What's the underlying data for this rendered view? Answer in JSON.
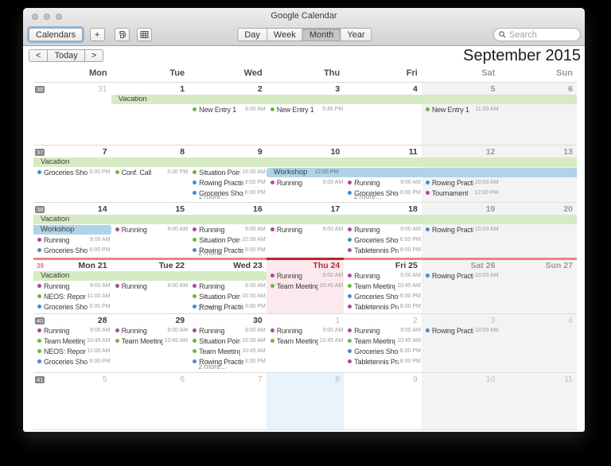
{
  "window": {
    "title": "Google Calendar"
  },
  "toolbar": {
    "calendars_label": "Calendars",
    "add_label": "+",
    "print_icon": "printer-icon",
    "grid_icon": "month-grid-icon",
    "view_segments": [
      {
        "label": "Day",
        "active": false
      },
      {
        "label": "Week",
        "active": false
      },
      {
        "label": "Month",
        "active": true
      },
      {
        "label": "Year",
        "active": false
      }
    ],
    "search_placeholder": "Search"
  },
  "nav": {
    "prev": "<",
    "today_label": "Today",
    "next": ">",
    "period": "September 2015"
  },
  "day_headers": [
    "Mon",
    "Tue",
    "Wed",
    "Thu",
    "Fri",
    "Sat",
    "Sun"
  ],
  "colors": {
    "banner_green": "#d6ebc3",
    "banner_blue": "#afd3e8",
    "dot_green": "#6fb53f",
    "dot_blue": "#4a8bc9",
    "dot_purple": "#a74b9f",
    "today_red": "#c8232c",
    "current_week_bar": "#ef837e",
    "current_week_bar_today": "#b2282e",
    "today_column_bg": "#fbe9ed",
    "selected_column_bg": "#e9f3fb",
    "weekend_bg": "#f3f3f3"
  },
  "weeks": [
    {
      "num": "36",
      "h": 78,
      "current": false,
      "banners": [
        {
          "title": "Vacation",
          "time": "",
          "color": "green",
          "start": 2,
          "span": 6,
          "lane": 0,
          "round_left": true,
          "round_right": false
        }
      ],
      "cells": [
        {
          "num": "31",
          "out": true,
          "skip": 0,
          "events": [],
          "more": ""
        },
        {
          "num": "1",
          "out": false,
          "skip": 1,
          "events": [],
          "more": ""
        },
        {
          "num": "2",
          "out": false,
          "skip": 1,
          "events": [
            {
              "t": "New Entry 1",
              "tm": "9:00 AM",
              "c": "green"
            }
          ],
          "more": ""
        },
        {
          "num": "3",
          "out": false,
          "skip": 1,
          "events": [
            {
              "t": "New Entry 1",
              "tm": "5:45 PM",
              "c": "green"
            }
          ],
          "more": ""
        },
        {
          "num": "4",
          "out": false,
          "skip": 1,
          "events": [],
          "more": ""
        },
        {
          "num": "5",
          "out": false,
          "skip": 1,
          "events": [
            {
              "t": "New Entry 1",
              "tm": "11:30 AM",
              "c": "green"
            }
          ],
          "more": ""
        },
        {
          "num": "6",
          "out": false,
          "skip": 1,
          "events": [],
          "more": ""
        }
      ]
    },
    {
      "num": "37",
      "h": 71,
      "current": false,
      "banners": [
        {
          "title": "Vacation",
          "time": "",
          "color": "green",
          "start": 1,
          "span": 7,
          "lane": 0,
          "round_left": false,
          "round_right": false
        },
        {
          "title": "Workshop",
          "time": "12:00 PM",
          "color": "blue",
          "start": 4,
          "span": 4,
          "lane": 1,
          "round_left": true,
          "round_right": false
        }
      ],
      "cells": [
        {
          "num": "7",
          "out": false,
          "skip": 1,
          "events": [
            {
              "t": "Groceries Shopping",
              "tm": "6:00 PM",
              "c": "blue"
            }
          ],
          "more": ""
        },
        {
          "num": "8",
          "out": false,
          "skip": 1,
          "events": [
            {
              "t": "Conf. Call",
              "tm": "3:30 PM",
              "c": "green"
            }
          ],
          "more": ""
        },
        {
          "num": "9",
          "out": false,
          "skip": 1,
          "events": [
            {
              "t": "Situation Point N...",
              "tm": "10:30 AM",
              "c": "green"
            },
            {
              "t": "Rowing Practise",
              "tm": "3:00 PM",
              "c": "blue"
            },
            {
              "t": "Groceries Shopping",
              "tm": "6:00 PM",
              "c": "blue"
            }
          ],
          "more": "1 more..."
        },
        {
          "num": "10",
          "out": false,
          "skip": 2,
          "events": [
            {
              "t": "Running",
              "tm": "9:00 AM",
              "c": "purple"
            }
          ],
          "more": ""
        },
        {
          "num": "11",
          "out": false,
          "skip": 2,
          "events": [
            {
              "t": "Running",
              "tm": "9:00 AM",
              "c": "purple"
            },
            {
              "t": "Groceries Shopping",
              "tm": "6:00 PM",
              "c": "blue"
            }
          ],
          "more": "1 more..."
        },
        {
          "num": "12",
          "out": false,
          "skip": 2,
          "events": [
            {
              "t": "Rowing Practise",
              "tm": "10:00 AM",
              "c": "blue"
            },
            {
              "t": "Tournament",
              "tm": "12:00 PM",
              "c": "purple"
            }
          ],
          "more": ""
        },
        {
          "num": "13",
          "out": false,
          "skip": 2,
          "events": [],
          "more": ""
        }
      ]
    },
    {
      "num": "38",
      "h": 70,
      "current": false,
      "banners": [
        {
          "title": "Vacation",
          "time": "",
          "color": "green",
          "start": 1,
          "span": 7,
          "lane": 0,
          "round_left": false,
          "round_right": false
        },
        {
          "title": "Workshop",
          "time": "",
          "color": "blue",
          "start": 1,
          "span": 1,
          "lane": 1,
          "round_left": false,
          "round_right": true
        }
      ],
      "cells": [
        {
          "num": "14",
          "out": false,
          "skip": 2,
          "events": [
            {
              "t": "Running",
              "tm": "9:00 AM",
              "c": "purple"
            },
            {
              "t": "Groceries Shopping",
              "tm": "6:00 PM",
              "c": "blue"
            }
          ],
          "more": ""
        },
        {
          "num": "15",
          "out": false,
          "skip": 1,
          "events": [
            {
              "t": "Running",
              "tm": "9:00 AM",
              "c": "purple"
            }
          ],
          "more": ""
        },
        {
          "num": "16",
          "out": false,
          "skip": 1,
          "events": [
            {
              "t": "Running",
              "tm": "9:00 AM",
              "c": "purple"
            },
            {
              "t": "Situation Point N...",
              "tm": "10:30 AM",
              "c": "green"
            },
            {
              "t": "Rowing Practise",
              "tm": "3:00 PM",
              "c": "blue"
            }
          ],
          "more": "2 more..."
        },
        {
          "num": "17",
          "out": false,
          "skip": 1,
          "events": [
            {
              "t": "Running",
              "tm": "9:00 AM",
              "c": "purple"
            }
          ],
          "more": ""
        },
        {
          "num": "18",
          "out": false,
          "skip": 1,
          "events": [
            {
              "t": "Running",
              "tm": "9:00 AM",
              "c": "purple"
            },
            {
              "t": "Groceries Shopping",
              "tm": "6:00 PM",
              "c": "blue"
            },
            {
              "t": "Tabletennis Practi...",
              "tm": "8:00 PM",
              "c": "purple"
            }
          ],
          "more": ""
        },
        {
          "num": "19",
          "out": false,
          "skip": 1,
          "events": [
            {
              "t": "Rowing Practise",
              "tm": "10:00 AM",
              "c": "blue"
            }
          ],
          "more": ""
        },
        {
          "num": "20",
          "out": false,
          "skip": 1,
          "events": [],
          "more": ""
        }
      ]
    },
    {
      "num": "39",
      "h": 68,
      "current": true,
      "banners": [
        {
          "title": "Vacation",
          "time": "",
          "color": "green",
          "start": 1,
          "span": 3,
          "lane": 0,
          "round_left": false,
          "round_right": true
        }
      ],
      "cells": [
        {
          "num": "21",
          "label": "Mon 21",
          "out": false,
          "skip": 1,
          "events": [
            {
              "t": "Running",
              "tm": "9:00 AM",
              "c": "purple"
            },
            {
              "t": "NEOS: Report Ti...",
              "tm": "11:00 AM",
              "c": "green"
            },
            {
              "t": "Groceries Shopping",
              "tm": "6:00 PM",
              "c": "blue"
            }
          ],
          "more": ""
        },
        {
          "num": "22",
          "label": "Tue 22",
          "out": false,
          "skip": 1,
          "events": [
            {
              "t": "Running",
              "tm": "9:00 AM",
              "c": "purple"
            }
          ],
          "more": ""
        },
        {
          "num": "23",
          "label": "Wed 23",
          "out": false,
          "skip": 1,
          "events": [
            {
              "t": "Running",
              "tm": "9:00 AM",
              "c": "purple"
            },
            {
              "t": "Situation Point N...",
              "tm": "10:30 AM",
              "c": "green"
            },
            {
              "t": "Rowing Practise",
              "tm": "3:00 PM",
              "c": "blue"
            }
          ],
          "more": "2 more..."
        },
        {
          "num": "24",
          "label": "Thu 24",
          "out": false,
          "today": true,
          "hl": "pink",
          "skip": 0,
          "events": [
            {
              "t": "Running",
              "tm": "9:00 AM",
              "c": "purple"
            },
            {
              "t": "Team Meeting",
              "tm": "10:45 AM",
              "c": "green"
            }
          ],
          "more": ""
        },
        {
          "num": "25",
          "label": "Fri 25",
          "out": false,
          "skip": 0,
          "events": [
            {
              "t": "Running",
              "tm": "9:00 AM",
              "c": "purple"
            },
            {
              "t": "Team Meeting",
              "tm": "10:45 AM",
              "c": "green"
            },
            {
              "t": "Groceries Shopping",
              "tm": "6:00 PM",
              "c": "blue"
            },
            {
              "t": "Tabletennis Practi...",
              "tm": "8:00 PM",
              "c": "purple"
            }
          ],
          "more": ""
        },
        {
          "num": "26",
          "label": "Sat 26",
          "out": false,
          "skip": 0,
          "events": [
            {
              "t": "Rowing Practise",
              "tm": "10:00 AM",
              "c": "blue"
            }
          ],
          "more": ""
        },
        {
          "num": "27",
          "label": "Sun 27",
          "out": false,
          "skip": 0,
          "events": [],
          "more": ""
        }
      ]
    },
    {
      "num": "40",
      "h": 73,
      "current": false,
      "banners": [],
      "cells": [
        {
          "num": "28",
          "out": false,
          "skip": 0,
          "events": [
            {
              "t": "Running",
              "tm": "9:00 AM",
              "c": "purple"
            },
            {
              "t": "Team Meeting",
              "tm": "10:45 AM",
              "c": "green"
            },
            {
              "t": "NEOS: Report Ti...",
              "tm": "11:00 AM",
              "c": "green"
            },
            {
              "t": "Groceries Shopping",
              "tm": "6:00 PM",
              "c": "blue"
            }
          ],
          "more": ""
        },
        {
          "num": "29",
          "out": false,
          "skip": 0,
          "events": [
            {
              "t": "Running",
              "tm": "9:00 AM",
              "c": "purple"
            },
            {
              "t": "Team Meeting",
              "tm": "10:45 AM",
              "c": "green"
            }
          ],
          "more": ""
        },
        {
          "num": "30",
          "out": false,
          "skip": 0,
          "events": [
            {
              "t": "Running",
              "tm": "9:00 AM",
              "c": "purple"
            },
            {
              "t": "Situation Point N...",
              "tm": "10:30 AM",
              "c": "green"
            },
            {
              "t": "Team Meeting",
              "tm": "10:45 AM",
              "c": "green"
            },
            {
              "t": "Rowing Practise",
              "tm": "3:00 PM",
              "c": "blue"
            }
          ],
          "more": "2 more..."
        },
        {
          "num": "1",
          "out": true,
          "skip": 0,
          "events": [
            {
              "t": "Running",
              "tm": "9:00 AM",
              "c": "purple"
            },
            {
              "t": "Team Meeting",
              "tm": "10:45 AM",
              "c": "green"
            }
          ],
          "more": ""
        },
        {
          "num": "2",
          "out": true,
          "skip": 0,
          "events": [
            {
              "t": "Running",
              "tm": "9:00 AM",
              "c": "purple"
            },
            {
              "t": "Team Meeting",
              "tm": "10:45 AM",
              "c": "green"
            },
            {
              "t": "Groceries Shopping",
              "tm": "6:00 PM",
              "c": "blue"
            },
            {
              "t": "Tabletennis Practi...",
              "tm": "8:00 PM",
              "c": "purple"
            }
          ],
          "more": ""
        },
        {
          "num": "3",
          "out": true,
          "skip": 0,
          "events": [
            {
              "t": "Rowing Practise",
              "tm": "10:00 AM",
              "c": "blue"
            }
          ],
          "more": ""
        },
        {
          "num": "4",
          "out": true,
          "skip": 0,
          "events": [],
          "more": ""
        }
      ]
    },
    {
      "num": "41",
      "h": 71,
      "current": false,
      "banners": [],
      "cells": [
        {
          "num": "5",
          "out": true,
          "skip": 0,
          "events": [],
          "more": ""
        },
        {
          "num": "6",
          "out": true,
          "skip": 0,
          "events": [],
          "more": ""
        },
        {
          "num": "7",
          "out": true,
          "skip": 0,
          "events": [],
          "more": ""
        },
        {
          "num": "8",
          "out": true,
          "hl": "blue",
          "skip": 0,
          "events": [],
          "more": ""
        },
        {
          "num": "9",
          "out": true,
          "skip": 0,
          "events": [],
          "more": ""
        },
        {
          "num": "10",
          "out": true,
          "skip": 0,
          "events": [],
          "more": ""
        },
        {
          "num": "11",
          "out": true,
          "skip": 0,
          "events": [],
          "more": ""
        }
      ]
    }
  ]
}
